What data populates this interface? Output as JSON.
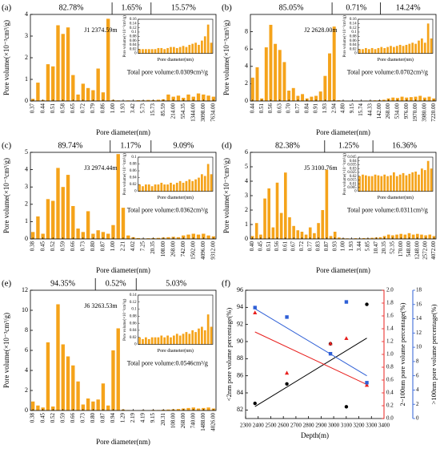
{
  "chart_data": [
    {
      "type": "bar",
      "label": "(a)",
      "xlabel": "Pore diameter(nm)",
      "ylabel": "Pore volume(×10⁻³cm³/g)",
      "color": "#f5a31a",
      "categories": [
        "0.37",
        null,
        "0.44",
        null,
        "0.51",
        null,
        "0.58",
        null,
        "0.65",
        null,
        "0.72",
        null,
        "0.79",
        null,
        "0.86",
        null,
        "1.00",
        null,
        "1.93",
        null,
        "3.42",
        null,
        "5.73",
        null,
        "15.73",
        null,
        "85.59",
        null,
        "214.00",
        null,
        "554.35",
        null,
        "1344.00",
        null,
        "3098.00",
        null,
        "7634.00"
      ],
      "values": [
        0.1,
        0.85,
        0.05,
        1.7,
        1.6,
        3.5,
        3.1,
        3.4,
        1.2,
        0.3,
        0.8,
        0.6,
        0.5,
        1.5,
        0.4,
        3.8,
        0.05,
        0.03,
        0.02,
        0.03,
        0.02,
        0.04,
        0.03,
        0.05,
        0.04,
        0.06,
        0.08,
        0.3,
        0.2,
        0.25,
        0.15,
        0.3,
        0.2,
        0.35,
        0.3,
        0.25,
        0.2
      ],
      "ylim": [
        0,
        4
      ],
      "yticks": [
        0,
        1,
        2,
        3,
        4
      ],
      "segments": [
        {
          "text": "82.78%",
          "color": "#e8201e"
        },
        {
          "text": "1.65%",
          "color": "#000000"
        },
        {
          "text": "15.57%",
          "color": "#000000"
        }
      ],
      "well": "J1  2374.59m",
      "total": "Total pore volume:0.0309cm³/g",
      "inset": {
        "xlabel": "Pore diameter(nm)",
        "ylabel": "Pore volume(×10⁻³cm³/g)",
        "ylim": [
          0,
          0.16
        ],
        "yticks": [
          0,
          0.02,
          0.04,
          0.06,
          0.08,
          0.1,
          0.12,
          0.14,
          0.16
        ],
        "values": [
          0.02,
          0.02,
          0.02,
          0.02,
          0.02,
          0.02,
          0.025,
          0.025,
          0.02,
          0.025,
          0.03,
          0.03,
          0.025,
          0.03,
          0.035,
          0.03,
          0.04,
          0.045,
          0.05,
          0.04,
          0.06,
          0.08,
          0.135,
          0.05
        ]
      }
    },
    {
      "type": "bar",
      "label": "(b)",
      "xlabel": "Pore diameter(nm)",
      "ylabel": "Pore volume(×10⁻³cm³/g)",
      "color": "#f5a31a",
      "categories": [
        "0.44",
        null,
        "0.51",
        null,
        "0.56",
        null,
        "0.63",
        null,
        "0.70",
        null,
        "0.77",
        null,
        "0.84",
        null,
        "0.91",
        null,
        "1.93",
        null,
        "2.94",
        null,
        "4.80",
        null,
        "9.15",
        null,
        "15.74",
        null,
        "44.33",
        null,
        "142.00",
        null,
        "268.00",
        null,
        "534.00",
        null,
        "976.00",
        null,
        "1970.00",
        null,
        "3980.00",
        null,
        "7220.00"
      ],
      "values": [
        2.7,
        3.9,
        0.3,
        6.2,
        8.8,
        6.6,
        5.9,
        4.5,
        1.2,
        1.5,
        0.6,
        0.8,
        0.3,
        0.5,
        0.6,
        1.1,
        2.9,
        5.5,
        8.6,
        0.1,
        0.05,
        0.04,
        0.03,
        0.05,
        0.04,
        0.05,
        0.06,
        0.08,
        0.1,
        0.15,
        0.3,
        0.4,
        0.35,
        0.5,
        0.4,
        0.45,
        0.5,
        0.6,
        0.4,
        0.5,
        0.3
      ],
      "ylim": [
        0,
        10
      ],
      "yticks": [
        0,
        2,
        4,
        6,
        8
      ],
      "segments": [
        {
          "text": "85.05%",
          "color": "#e8201e"
        },
        {
          "text": "0.71%",
          "color": "#000000"
        },
        {
          "text": "14.24%",
          "color": "#000000"
        }
      ],
      "well": "J2  2628.00m",
      "total": "Total pore volume:0.0702cm³/g",
      "inset": {
        "xlabel": "Pore diameter(nm)",
        "ylabel": "Pore volume(×10⁻³cm³/g)",
        "ylim": [
          0,
          0.16
        ],
        "yticks": [
          0,
          0.02,
          0.04,
          0.06,
          0.08,
          0.1,
          0.12,
          0.14,
          0.16
        ],
        "values": [
          0.02,
          0.02,
          0.025,
          0.02,
          0.025,
          0.02,
          0.025,
          0.03,
          0.025,
          0.03,
          0.035,
          0.03,
          0.035,
          0.04,
          0.035,
          0.04,
          0.045,
          0.05,
          0.045,
          0.06,
          0.07,
          0.05,
          0.14,
          0.07
        ]
      }
    },
    {
      "type": "bar",
      "label": "(c)",
      "xlabel": "Pore diameter(nm)",
      "ylabel": "Pore volume(×10⁻³cm³/g)",
      "color": "#f5a31a",
      "categories": [
        "0.38",
        null,
        "0.45",
        null,
        "0.52",
        null,
        "0.59",
        null,
        "0.66",
        null,
        "0.73",
        null,
        "0.80",
        null,
        "0.87",
        null,
        "1.00",
        null,
        "2.21",
        null,
        "4.02",
        null,
        "7.25",
        null,
        "20.35",
        null,
        "108.00",
        null,
        "268.00",
        null,
        "742.00",
        null,
        "1502.00",
        null,
        "4096.00",
        null,
        "9312.00"
      ],
      "values": [
        0.4,
        1.3,
        0.3,
        2.3,
        2.2,
        4.1,
        3.0,
        3.7,
        1.9,
        0.6,
        0.4,
        1.6,
        0.3,
        0.5,
        0.4,
        0.3,
        0.8,
        4.9,
        1.8,
        0.2,
        0.1,
        0.05,
        0.03,
        0.04,
        0.05,
        0.06,
        0.08,
        0.1,
        0.12,
        0.1,
        0.2,
        0.25,
        0.3,
        0.25,
        0.3,
        0.2,
        0.15
      ],
      "ylim": [
        0,
        5
      ],
      "yticks": [
        0,
        1,
        2,
        3,
        4,
        5
      ],
      "segments": [
        {
          "text": "89.74%",
          "color": "#e8201e"
        },
        {
          "text": "1.17%",
          "color": "#000000"
        },
        {
          "text": "9.09%",
          "color": "#000000"
        }
      ],
      "well": "J3  2974.44m",
      "total": "Total pore volume:0.0362cm³/g",
      "inset": {
        "xlabel": "Pore diameter(nm)",
        "ylabel": "Pore volume(×10⁻³cm³/g)",
        "ylim": [
          0,
          0.1
        ],
        "yticks": [
          0,
          0.02,
          0.04,
          0.06,
          0.08,
          0.1
        ],
        "values": [
          0.02,
          0.015,
          0.02,
          0.02,
          0.015,
          0.02,
          0.02,
          0.025,
          0.02,
          0.02,
          0.025,
          0.02,
          0.025,
          0.03,
          0.025,
          0.03,
          0.035,
          0.03,
          0.035,
          0.04,
          0.05,
          0.045,
          0.08,
          0.05
        ]
      }
    },
    {
      "type": "bar",
      "label": "(d)",
      "xlabel": "Pore diameter(nm)",
      "ylabel": "Pore volume(×10⁻³cm³/g)",
      "color": "#f5a31a",
      "categories": [
        "0.40",
        null,
        "0.45",
        null,
        "0.51",
        null,
        "0.56",
        null,
        "0.61",
        null,
        "0.67",
        null,
        "0.72",
        null,
        "0.77",
        null,
        "0.83",
        null,
        "0.87",
        null,
        "0.93",
        null,
        "1.00",
        null,
        "1.93",
        null,
        "3.44",
        null,
        "5.85",
        null,
        "10.47",
        null,
        "20.35",
        null,
        "52.35",
        null,
        "170.00",
        null,
        "548.00",
        null,
        "1248.00",
        null,
        "2572.00",
        null,
        "4072.00"
      ],
      "values": [
        0.2,
        1.1,
        0.3,
        2.8,
        3.5,
        0.8,
        3.9,
        1.8,
        4.6,
        1.5,
        0.9,
        0.6,
        0.5,
        0.3,
        0.8,
        0.4,
        1.1,
        2.0,
        4.8,
        0.2,
        0.5,
        0.1,
        0.05,
        0.04,
        0.03,
        0.05,
        0.04,
        0.06,
        0.05,
        0.08,
        0.1,
        0.12,
        0.2,
        0.3,
        0.25,
        0.3,
        0.35,
        0.3,
        0.4,
        0.3,
        0.35,
        0.3,
        0.25,
        0.3,
        0.2
      ],
      "ylim": [
        0,
        6
      ],
      "yticks": [
        0,
        1,
        2,
        3,
        4,
        5,
        6
      ],
      "segments": [
        {
          "text": "82.38%",
          "color": "#e8201e"
        },
        {
          "text": "1.25%",
          "color": "#000000"
        },
        {
          "text": "16.36%",
          "color": "#000000"
        }
      ],
      "well": "J5  3100.76m",
      "total": "Total pore volume:0.0311cm³/g",
      "inset": {
        "xlabel": "Pore diameter(nm)",
        "ylabel": "Pore volume(×10⁻³cm³/g)",
        "ylim": [
          0,
          0.045
        ],
        "yticks": [
          0,
          0.005,
          0.01,
          0.015,
          0.02,
          0.025,
          0.03,
          0.035,
          0.04,
          0.045
        ],
        "values": [
          0.02,
          0.022,
          0.021,
          0.02,
          0.02,
          0.022,
          0.021,
          0.02,
          0.022,
          0.02,
          0.021,
          0.025,
          0.02,
          0.022,
          0.024,
          0.021,
          0.023,
          0.025,
          0.026,
          0.022,
          0.03,
          0.028,
          0.04,
          0.03
        ]
      }
    },
    {
      "type": "bar",
      "label": "(e)",
      "xlabel": "Pore diameter(nm)",
      "ylabel": "Pore volume(×10⁻³cm³/g)",
      "color": "#f5a31a",
      "categories": [
        "0.38",
        null,
        "0.45",
        null,
        "0.52",
        null,
        "0.59",
        null,
        "0.66",
        null,
        "0.73",
        null,
        "0.80",
        null,
        "0.87",
        null,
        "0.94",
        null,
        "1.29",
        null,
        "2.19",
        null,
        "4.19",
        null,
        "9.15",
        null,
        "20.31",
        null,
        "108.00",
        null,
        "268.00",
        null,
        "740.00",
        null,
        "1488.00",
        null,
        "4026.00"
      ],
      "values": [
        0.9,
        0.5,
        0.3,
        6.8,
        0.4,
        10.6,
        6.6,
        5.4,
        4.5,
        2.9,
        0.6,
        1.2,
        0.9,
        1.1,
        2.7,
        0.5,
        6.0,
        8.2,
        0.1,
        0.05,
        0.04,
        0.03,
        0.05,
        0.04,
        0.06,
        0.05,
        0.08,
        0.1,
        0.12,
        0.15,
        0.2,
        0.25,
        0.3,
        0.2,
        0.25,
        0.3,
        0.2
      ],
      "ylim": [
        0,
        12
      ],
      "yticks": [
        0,
        2,
        4,
        6,
        8,
        10,
        12
      ],
      "segments": [
        {
          "text": "94.35%",
          "color": "#e8201e"
        },
        {
          "text": "0.52%",
          "color": "#000000"
        },
        {
          "text": "5.03%",
          "color": "#000000"
        }
      ],
      "well": "J6  3263.53m",
      "total": "Total pore volume:0.0546cm³/g",
      "inset": {
        "xlabel": "Pore diameter(nm)",
        "ylabel": "Pore volume(×10⁻³cm³/g)",
        "ylim": [
          0,
          0.14
        ],
        "yticks": [
          0,
          0.02,
          0.04,
          0.06,
          0.08,
          0.1,
          0.12,
          0.14
        ],
        "values": [
          0.02,
          0.015,
          0.02,
          0.015,
          0.02,
          0.02,
          0.02,
          0.025,
          0.02,
          0.025,
          0.02,
          0.025,
          0.03,
          0.025,
          0.03,
          0.035,
          0.03,
          0.04,
          0.035,
          0.045,
          0.05,
          0.04,
          0.085,
          0.05
        ]
      }
    },
    {
      "type": "scatter",
      "label": "(f)",
      "xlabel": "Depth(m)",
      "xlim": [
        2300,
        3400
      ],
      "xticks": [
        2300,
        2400,
        2500,
        2600,
        2700,
        2800,
        2900,
        3000,
        3100,
        3200,
        3300,
        3400
      ],
      "ylabel": "<2nm pore volume percentage(%)",
      "ylim": [
        81,
        96
      ],
      "yticks": [
        82,
        84,
        86,
        88,
        90,
        92,
        94,
        96
      ],
      "y2label": "2~100nm pore volume percentage(%)",
      "y2color": "#e8201e",
      "y2lim": [
        0,
        2
      ],
      "y2ticks": [
        {
          "value": 0,
          "label": "0.0"
        },
        0.2,
        0.4,
        0.6,
        0.8,
        {
          "value": 1,
          "label": "1.0"
        },
        1.2,
        1.4,
        1.6,
        1.8,
        {
          "value": 2,
          "label": "2.0"
        }
      ],
      "y3label": ">100nm pore volume percentage(%)",
      "y3color": "#2e5fd6",
      "y3lim": [
        0,
        18
      ],
      "y3ticks": [
        0,
        2,
        4,
        6,
        8,
        10,
        12,
        14,
        16,
        18
      ],
      "series": [
        {
          "color": "#000000",
          "marker": "circle",
          "x": [
            2374.59,
            2628.0,
            2974.44,
            3100.76,
            3263.53
          ],
          "values": [
            82.78,
            85.05,
            89.74,
            82.38,
            94.35
          ],
          "fit": [
            [
              2374.59,
              82.4
            ],
            [
              3263.53,
              90.4
            ]
          ]
        },
        {
          "color": "#e8201e",
          "marker": "triangle",
          "axis": "y2",
          "x": [
            2374.59,
            2628.0,
            2974.44,
            3100.76,
            3263.53
          ],
          "values": [
            1.65,
            0.71,
            1.17,
            1.25,
            0.52
          ],
          "fit": [
            [
              2374.59,
              1.35
            ],
            [
              3263.53,
              0.53
            ]
          ]
        },
        {
          "color": "#2e5fd6",
          "marker": "square",
          "axis": "y3",
          "x": [
            2374.59,
            2628.0,
            2974.44,
            3100.76,
            3263.53
          ],
          "values": [
            15.57,
            14.24,
            9.09,
            16.36,
            5.03
          ],
          "fit": [
            [
              2374.59,
              15.4
            ],
            [
              3263.53,
              6.0
            ]
          ]
        }
      ]
    }
  ]
}
